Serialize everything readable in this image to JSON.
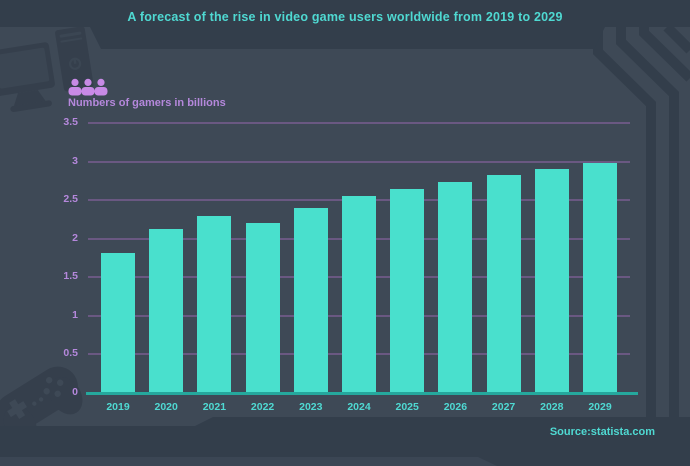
{
  "title": "A forecast of the rise in video game users worldwide from 2019 to 2029",
  "header": {
    "unit_label": "Numbers of gamers in billions"
  },
  "footer": {
    "source": "Source:statista.com"
  },
  "chart_data": {
    "type": "bar",
    "title": "A forecast of the rise in video game users worldwide from 2019 to 2029",
    "ylabel": "Numbers of gamers in billions",
    "xlabel": "",
    "categories": [
      "2019",
      "2020",
      "2021",
      "2022",
      "2023",
      "2024",
      "2025",
      "2026",
      "2027",
      "2028",
      "2029"
    ],
    "values": [
      1.82,
      2.13,
      2.3,
      2.21,
      2.4,
      2.55,
      2.65,
      2.73,
      2.82,
      2.9,
      2.98
    ],
    "y_ticks": [
      "0",
      "0.5",
      "1",
      "1.5",
      "2",
      "2.5",
      "3",
      "3.5"
    ],
    "ylim": [
      0,
      3.5
    ],
    "grid": true,
    "legend": false,
    "source": "Source:statista.com"
  },
  "colors": {
    "background": "#3e4956",
    "band": "#333e4b",
    "band_light": "#3b4654",
    "silhouette": "#353f4c",
    "screen": "#3b4653",
    "bar": "#49e0cd",
    "teal_text": "#4fd9d2",
    "axis": "#25a89d",
    "purple_text": "#b588dc",
    "icon_purple": "#c88ae6",
    "gridline": "#7d6095"
  }
}
